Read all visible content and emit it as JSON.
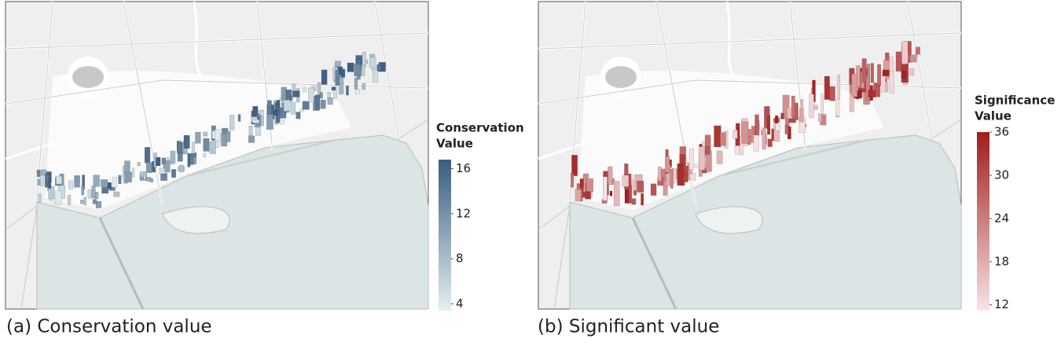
{
  "panels": [
    {
      "caption": "(a) Conservation value",
      "colorbar": {
        "title": [
          "Conservation",
          "Value"
        ],
        "lim": [
          3.4,
          16.8
        ],
        "ticks": [
          4,
          8,
          12,
          16
        ],
        "colors": [
          "#e4f0f2",
          "#3b5c80"
        ]
      }
    },
    {
      "caption": "(b) Significant value",
      "colorbar": {
        "title": [
          "Significance",
          "Value"
        ],
        "lim": [
          11.2,
          36
        ],
        "ticks": [
          12,
          18,
          24,
          30,
          36
        ],
        "colors": [
          "#f8e4e5",
          "#a11c1c"
        ]
      }
    }
  ]
}
